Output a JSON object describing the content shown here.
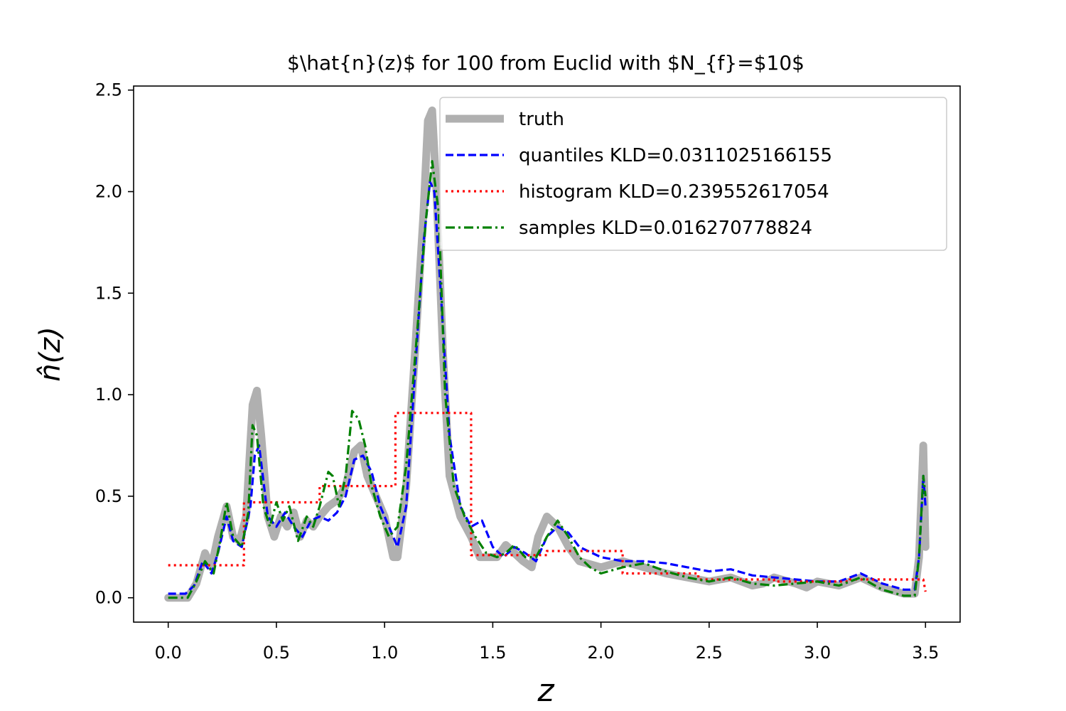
{
  "chart_data": {
    "type": "line",
    "title": "$\\hat{n}(z)$ for 100 from Euclid with $N_{f}=$10$",
    "xlabel": "z",
    "ylabel": "n̂(z)",
    "xlim": [
      -0.16,
      3.66
    ],
    "ylim": [
      -0.12,
      2.52
    ],
    "xticks": [
      0.0,
      0.5,
      1.0,
      1.5,
      2.0,
      2.5,
      3.0,
      3.5
    ],
    "xtick_labels": [
      "0.0",
      "0.5",
      "1.0",
      "1.5",
      "2.0",
      "2.5",
      "3.0",
      "3.5"
    ],
    "yticks": [
      0.0,
      0.5,
      1.0,
      1.5,
      2.0,
      2.5
    ],
    "ytick_labels": [
      "0.0",
      "0.5",
      "1.0",
      "1.5",
      "2.0",
      "2.5"
    ],
    "legend_placement": "top-right",
    "grid": false,
    "series": [
      {
        "name": "truth",
        "color": "#b0b0b0",
        "style": "solid",
        "x": [
          0.0,
          0.09,
          0.13,
          0.17,
          0.2,
          0.23,
          0.27,
          0.3,
          0.33,
          0.36,
          0.39,
          0.41,
          0.43,
          0.46,
          0.49,
          0.52,
          0.55,
          0.58,
          0.61,
          0.64,
          0.67,
          0.7,
          0.74,
          0.78,
          0.82,
          0.86,
          0.89,
          0.92,
          0.96,
          1.0,
          1.04,
          1.06,
          1.1,
          1.14,
          1.18,
          1.2,
          1.22,
          1.24,
          1.27,
          1.3,
          1.35,
          1.4,
          1.44,
          1.48,
          1.52,
          1.56,
          1.6,
          1.64,
          1.68,
          1.71,
          1.75,
          1.8,
          1.85,
          1.9,
          2.0,
          2.1,
          2.2,
          2.3,
          2.4,
          2.5,
          2.6,
          2.7,
          2.75,
          2.8,
          2.9,
          2.95,
          3.0,
          3.1,
          3.2,
          3.3,
          3.4,
          3.45,
          3.47,
          3.49,
          3.5
        ],
        "y": [
          0.0,
          0.0,
          0.07,
          0.22,
          0.15,
          0.3,
          0.45,
          0.3,
          0.28,
          0.4,
          0.95,
          1.02,
          0.8,
          0.4,
          0.3,
          0.4,
          0.35,
          0.42,
          0.3,
          0.38,
          0.35,
          0.4,
          0.45,
          0.48,
          0.55,
          0.72,
          0.75,
          0.6,
          0.5,
          0.4,
          0.2,
          0.2,
          0.55,
          1.2,
          1.9,
          2.35,
          2.4,
          2.0,
          1.2,
          0.6,
          0.4,
          0.3,
          0.2,
          0.2,
          0.2,
          0.26,
          0.22,
          0.18,
          0.15,
          0.3,
          0.4,
          0.35,
          0.25,
          0.18,
          0.15,
          0.18,
          0.15,
          0.12,
          0.1,
          0.08,
          0.1,
          0.06,
          0.07,
          0.1,
          0.07,
          0.05,
          0.08,
          0.06,
          0.1,
          0.05,
          0.02,
          0.02,
          0.2,
          0.75,
          0.25
        ]
      },
      {
        "name": "quantiles KLD=0.0311025166155",
        "color": "#0000ff",
        "style": "dashed",
        "x": [
          0.0,
          0.08,
          0.12,
          0.16,
          0.2,
          0.23,
          0.27,
          0.3,
          0.34,
          0.38,
          0.4,
          0.42,
          0.46,
          0.5,
          0.54,
          0.58,
          0.62,
          0.66,
          0.7,
          0.74,
          0.78,
          0.82,
          0.86,
          0.9,
          0.94,
          0.98,
          1.02,
          1.06,
          1.1,
          1.14,
          1.18,
          1.21,
          1.23,
          1.26,
          1.3,
          1.35,
          1.4,
          1.45,
          1.5,
          1.55,
          1.6,
          1.65,
          1.7,
          1.75,
          1.8,
          1.85,
          1.9,
          2.0,
          2.1,
          2.2,
          2.3,
          2.4,
          2.5,
          2.6,
          2.7,
          2.8,
          2.9,
          3.0,
          3.1,
          3.2,
          3.3,
          3.4,
          3.45,
          3.47,
          3.49,
          3.5
        ],
        "y": [
          0.02,
          0.02,
          0.06,
          0.18,
          0.12,
          0.22,
          0.4,
          0.28,
          0.25,
          0.45,
          0.7,
          0.75,
          0.4,
          0.35,
          0.42,
          0.35,
          0.3,
          0.38,
          0.4,
          0.38,
          0.42,
          0.5,
          0.68,
          0.7,
          0.62,
          0.45,
          0.35,
          0.25,
          0.45,
          1.1,
          1.75,
          2.05,
          2.0,
          1.5,
          0.8,
          0.45,
          0.35,
          0.38,
          0.25,
          0.2,
          0.25,
          0.22,
          0.18,
          0.3,
          0.35,
          0.32,
          0.25,
          0.2,
          0.18,
          0.18,
          0.17,
          0.15,
          0.13,
          0.14,
          0.11,
          0.1,
          0.09,
          0.08,
          0.08,
          0.12,
          0.07,
          0.04,
          0.04,
          0.2,
          0.6,
          0.45
        ]
      },
      {
        "name": "histogram KLD=0.239552617054",
        "color": "#ff0000",
        "style": "dotted",
        "x": [
          0.0,
          0.35,
          0.35,
          0.7,
          0.7,
          1.05,
          1.05,
          1.4,
          1.4,
          1.75,
          1.75,
          2.1,
          2.1,
          2.45,
          2.45,
          2.8,
          2.8,
          3.15,
          3.15,
          3.49,
          3.5
        ],
        "y": [
          0.16,
          0.16,
          0.47,
          0.47,
          0.55,
          0.55,
          0.91,
          0.91,
          0.21,
          0.21,
          0.23,
          0.23,
          0.12,
          0.12,
          0.09,
          0.09,
          0.08,
          0.08,
          0.09,
          0.09,
          0.03
        ]
      },
      {
        "name": "samples KLD=0.016270778824",
        "color": "#008000",
        "style": "dashdot",
        "x": [
          0.0,
          0.09,
          0.13,
          0.17,
          0.21,
          0.24,
          0.27,
          0.3,
          0.34,
          0.37,
          0.39,
          0.41,
          0.44,
          0.47,
          0.5,
          0.53,
          0.56,
          0.6,
          0.64,
          0.67,
          0.7,
          0.74,
          0.76,
          0.79,
          0.82,
          0.85,
          0.88,
          0.91,
          0.94,
          0.98,
          1.02,
          1.06,
          1.1,
          1.15,
          1.19,
          1.22,
          1.25,
          1.28,
          1.32,
          1.37,
          1.42,
          1.47,
          1.52,
          1.56,
          1.6,
          1.65,
          1.7,
          1.75,
          1.8,
          1.85,
          1.9,
          1.95,
          2.0,
          2.1,
          2.2,
          2.3,
          2.4,
          2.5,
          2.6,
          2.7,
          2.8,
          2.9,
          3.0,
          3.1,
          3.2,
          3.3,
          3.4,
          3.45,
          3.47,
          3.49,
          3.5
        ],
        "y": [
          0.0,
          0.0,
          0.08,
          0.18,
          0.12,
          0.28,
          0.47,
          0.3,
          0.25,
          0.42,
          0.85,
          0.8,
          0.45,
          0.35,
          0.47,
          0.38,
          0.45,
          0.28,
          0.4,
          0.35,
          0.45,
          0.62,
          0.6,
          0.45,
          0.6,
          0.92,
          0.88,
          0.75,
          0.55,
          0.4,
          0.3,
          0.35,
          0.65,
          1.3,
          1.85,
          2.15,
          1.9,
          1.0,
          0.55,
          0.4,
          0.3,
          0.22,
          0.2,
          0.22,
          0.26,
          0.2,
          0.2,
          0.3,
          0.38,
          0.3,
          0.2,
          0.15,
          0.12,
          0.15,
          0.17,
          0.13,
          0.1,
          0.08,
          0.1,
          0.07,
          0.06,
          0.07,
          0.08,
          0.06,
          0.1,
          0.04,
          0.01,
          0.01,
          0.2,
          0.6,
          0.5
        ]
      }
    ]
  }
}
